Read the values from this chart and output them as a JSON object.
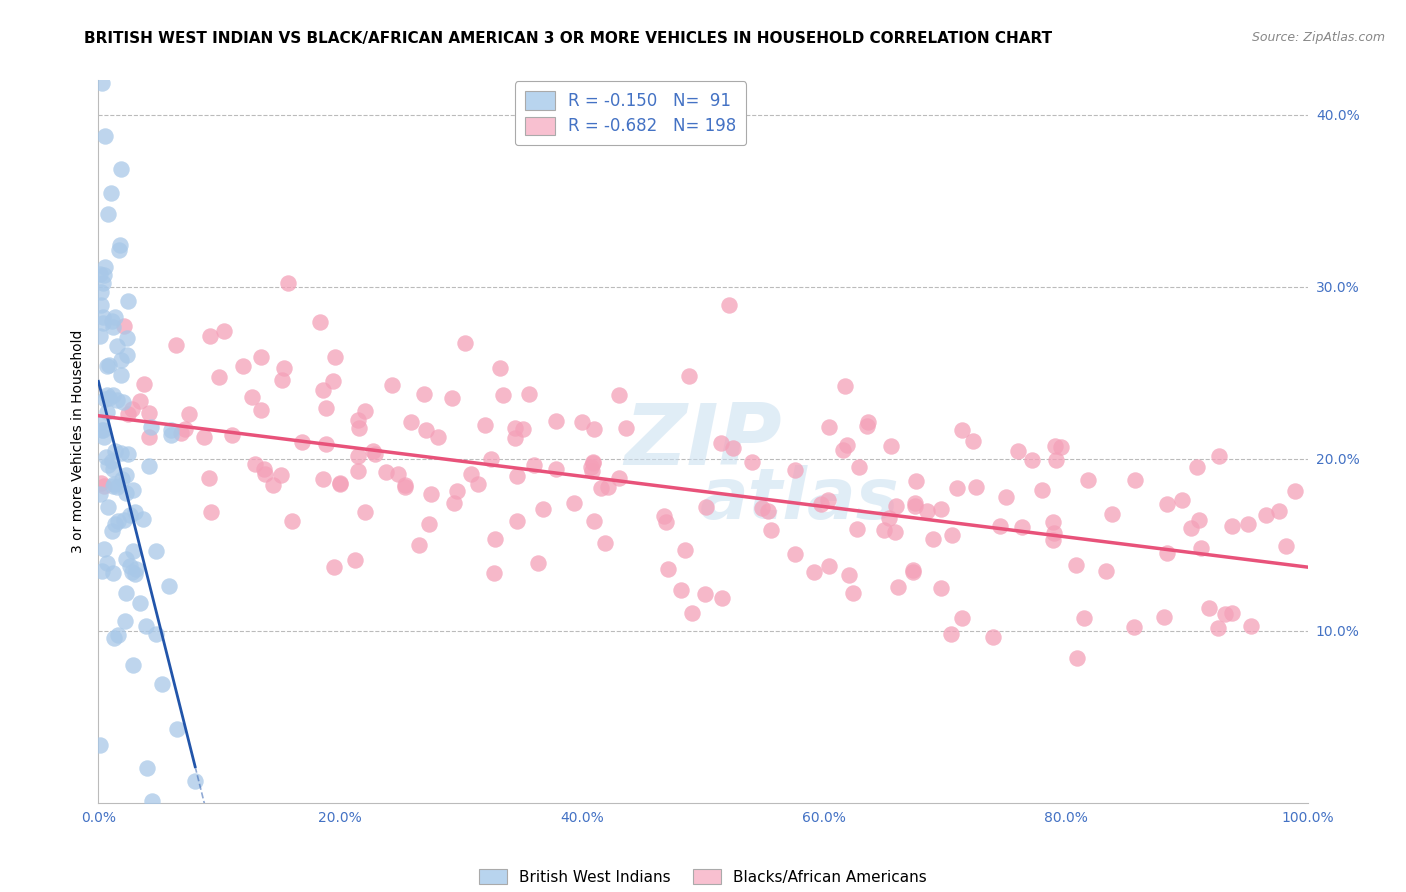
{
  "title": "BRITISH WEST INDIAN VS BLACK/AFRICAN AMERICAN 3 OR MORE VEHICLES IN HOUSEHOLD CORRELATION CHART",
  "source": "Source: ZipAtlas.com",
  "ylabel": "3 or more Vehicles in Household",
  "xlim": [
    0.0,
    1.0
  ],
  "ylim": [
    0.0,
    0.42
  ],
  "x_ticks": [
    0.0,
    0.2,
    0.4,
    0.6,
    0.8,
    1.0
  ],
  "x_tick_labels": [
    "0.0%",
    "20.0%",
    "40.0%",
    "60.0%",
    "80.0%",
    "100.0%"
  ],
  "y_ticks": [
    0.0,
    0.1,
    0.2,
    0.3,
    0.4
  ],
  "y_tick_labels": [
    "",
    "10.0%",
    "20.0%",
    "30.0%",
    "40.0%"
  ],
  "r_blue": -0.15,
  "n_blue": 91,
  "r_pink": -0.682,
  "n_pink": 198,
  "blue_scatter_color": "#a8c8e8",
  "pink_scatter_color": "#f4a0b8",
  "blue_line_color": "#2255aa",
  "pink_line_color": "#e8527a",
  "blue_legend_color": "#b8d4ee",
  "pink_legend_color": "#f8c0d0",
  "legend_label_blue": "British West Indians",
  "legend_label_pink": "Blacks/African Americans",
  "grid_color": "#bbbbbb",
  "background_color": "#ffffff",
  "title_fontsize": 11,
  "source_fontsize": 9,
  "tick_color": "#4472c4",
  "watermark_color": "#c8dff0",
  "blue_intercept": 0.245,
  "blue_slope": -2.8,
  "pink_intercept": 0.225,
  "pink_slope": -0.088
}
